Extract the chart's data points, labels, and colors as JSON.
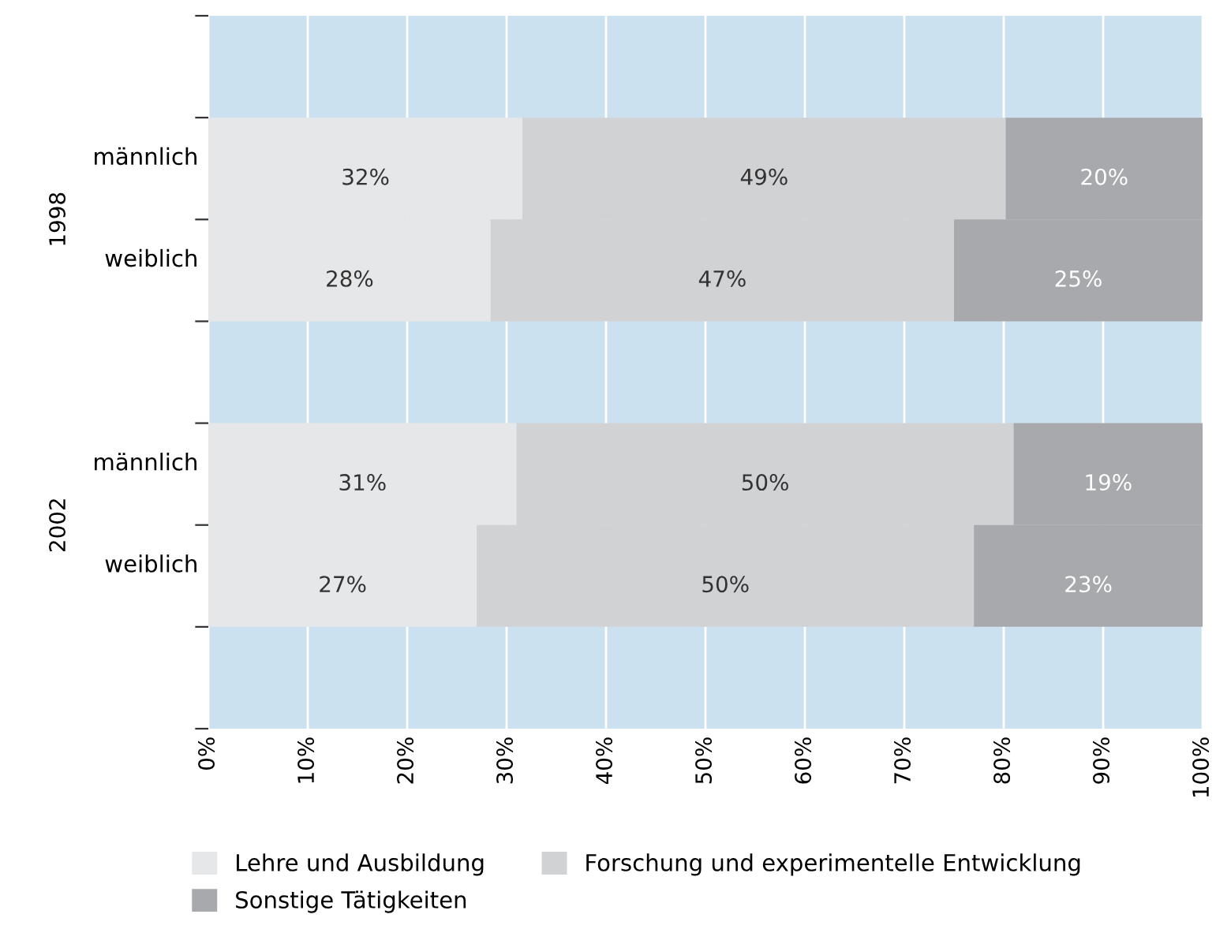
{
  "chart_data": {
    "type": "bar",
    "orientation": "horizontal",
    "stacked": true,
    "categories": [
      null,
      "männlich",
      "weiblich",
      null,
      "männlich",
      "weiblich",
      null
    ],
    "annotations": [
      "1998",
      "2002"
    ],
    "series": [
      {
        "name": "Lehre und Ausbildung",
        "color": "#e6e7e8",
        "values": [
          null,
          31.6,
          28.4,
          null,
          31,
          27,
          null
        ],
        "value_labels": [
          null,
          "32%",
          "28%",
          null,
          "31%",
          "27%",
          null
        ]
      },
      {
        "name": "Forschung und experimentelle Entwicklung",
        "color": "#d1d2d4",
        "values": [
          null,
          48.6,
          46.6,
          null,
          50,
          50,
          null
        ],
        "value_labels": [
          null,
          "49%",
          "47%",
          null,
          "50%",
          "50%",
          null
        ]
      },
      {
        "name": "Sonstige Tätigkeiten",
        "color": "#a7a9ac",
        "values": [
          null,
          19.8,
          25,
          null,
          19,
          23,
          null
        ],
        "value_labels": [
          null,
          "20%",
          "25%",
          null,
          "19%",
          "23%",
          null
        ]
      }
    ],
    "xlim": [
      0,
      100
    ],
    "xticks": [
      {
        "value": 0,
        "label": "0%"
      },
      {
        "value": 10,
        "label": "10%"
      },
      {
        "value": 20,
        "label": "20%"
      },
      {
        "value": 30,
        "label": "30%"
      },
      {
        "value": 40,
        "label": "40%"
      },
      {
        "value": 50,
        "label": "50%"
      },
      {
        "value": 60,
        "label": "60%"
      },
      {
        "value": 70,
        "label": "70%"
      },
      {
        "value": 80,
        "label": "80%"
      },
      {
        "value": 90,
        "label": "90%"
      },
      {
        "value": 100,
        "label": "100%"
      }
    ],
    "grid": "x",
    "legend": "bottom"
  }
}
